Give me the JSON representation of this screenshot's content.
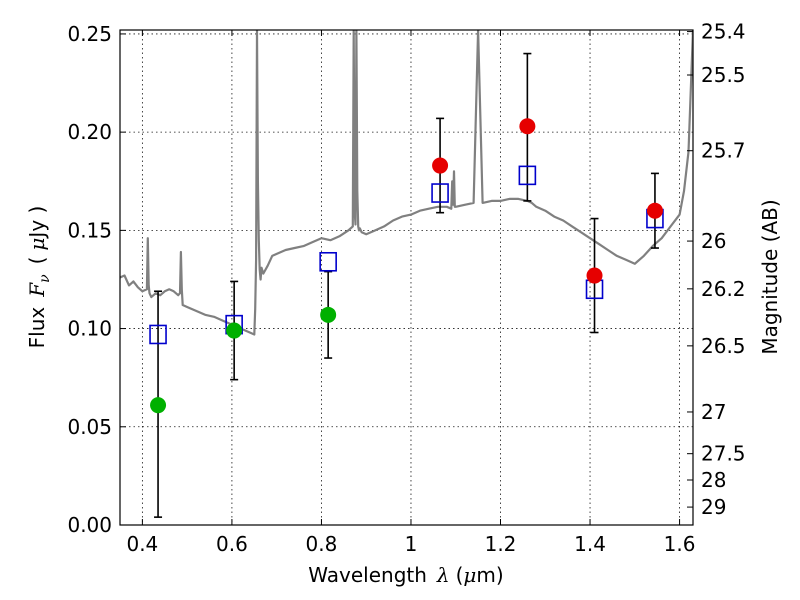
{
  "chart_data": {
    "type": "scatter",
    "title": "",
    "xlabel": {
      "text": "Wavelength",
      "symbol": "λ",
      "unit_open": "(",
      "unit_mu": "μ",
      "unit_rest": "m)"
    },
    "ylabel": {
      "text": "Flux",
      "symbol": "F",
      "subscript": "ν",
      "unit_open": "(",
      "unit_mu": "μ",
      "unit_rest": "Jy )"
    },
    "y2label": "Magnitude (AB)",
    "xlim": [
      0.35,
      1.63
    ],
    "ylim": [
      0.0,
      0.252
    ],
    "grid": true,
    "xticks": [
      {
        "value": 0.4,
        "label": "0.4"
      },
      {
        "value": 0.6,
        "label": "0.6"
      },
      {
        "value": 0.8,
        "label": "0.8"
      },
      {
        "value": 1.0,
        "label": "1"
      },
      {
        "value": 1.2,
        "label": "1.2"
      },
      {
        "value": 1.4,
        "label": "1.4"
      },
      {
        "value": 1.6,
        "label": "1.6"
      }
    ],
    "yticks": [
      {
        "value": 0.0,
        "label": "0.00"
      },
      {
        "value": 0.05,
        "label": "0.05"
      },
      {
        "value": 0.1,
        "label": "0.10"
      },
      {
        "value": 0.15,
        "label": "0.15"
      },
      {
        "value": 0.2,
        "label": "0.20"
      },
      {
        "value": 0.25,
        "label": "0.25"
      }
    ],
    "magnitude_ticks": [
      {
        "mag": 25.4,
        "label": "25.4"
      },
      {
        "mag": 25.5,
        "label": "25.5"
      },
      {
        "mag": 25.7,
        "label": "25.7"
      },
      {
        "mag": 26.0,
        "label": "26"
      },
      {
        "mag": 26.2,
        "label": "26.2"
      },
      {
        "mag": 26.5,
        "label": "26.5"
      },
      {
        "mag": 27.0,
        "label": "27"
      },
      {
        "mag": 27.5,
        "label": "27.5"
      },
      {
        "mag": 28.0,
        "label": "28"
      },
      {
        "mag": 29.0,
        "label": "29"
      }
    ],
    "colors": {
      "model_line": "#808080",
      "model_squares": "#0000cc",
      "observed_red": "#e60000",
      "observed_green": "#00b000",
      "error_bars": "#000000"
    },
    "model_spectrum": {
      "x": [
        0.35,
        0.36,
        0.37,
        0.38,
        0.39,
        0.4,
        0.41,
        0.412,
        0.414,
        0.416,
        0.42,
        0.43,
        0.44,
        0.45,
        0.46,
        0.47,
        0.48,
        0.484,
        0.486,
        0.488,
        0.49,
        0.5,
        0.52,
        0.54,
        0.56,
        0.58,
        0.6,
        0.62,
        0.64,
        0.65,
        0.652,
        0.654,
        0.656,
        0.658,
        0.66,
        0.662,
        0.664,
        0.666,
        0.67,
        0.68,
        0.69,
        0.7,
        0.72,
        0.74,
        0.76,
        0.78,
        0.8,
        0.82,
        0.84,
        0.86,
        0.87,
        0.872,
        0.874,
        0.876,
        0.878,
        0.88,
        0.882,
        0.884,
        0.886,
        0.888,
        0.89,
        0.9,
        0.92,
        0.94,
        0.96,
        0.98,
        1.0,
        1.02,
        1.04,
        1.06,
        1.08,
        1.09,
        1.092,
        1.094,
        1.096,
        1.098,
        1.1,
        1.12,
        1.14,
        1.15,
        1.16,
        1.18,
        1.2,
        1.22,
        1.24,
        1.26,
        1.27,
        1.28,
        1.3,
        1.32,
        1.34,
        1.36,
        1.38,
        1.4,
        1.42,
        1.44,
        1.46,
        1.48,
        1.5,
        1.52,
        1.54,
        1.56,
        1.58,
        1.6,
        1.61,
        1.62,
        1.63
      ],
      "y": [
        0.126,
        0.127,
        0.122,
        0.124,
        0.121,
        0.119,
        0.12,
        0.146,
        0.122,
        0.118,
        0.116,
        0.118,
        0.117,
        0.119,
        0.12,
        0.119,
        0.117,
        0.118,
        0.139,
        0.12,
        0.112,
        0.111,
        0.109,
        0.107,
        0.106,
        0.104,
        0.102,
        0.1,
        0.098,
        0.097,
        0.11,
        0.135,
        0.252,
        0.175,
        0.145,
        0.13,
        0.125,
        0.131,
        0.128,
        0.132,
        0.137,
        0.138,
        0.14,
        0.141,
        0.142,
        0.144,
        0.146,
        0.145,
        0.147,
        0.15,
        0.152,
        0.252,
        0.16,
        0.153,
        0.252,
        0.17,
        0.152,
        0.15,
        0.151,
        0.15,
        0.149,
        0.148,
        0.15,
        0.152,
        0.155,
        0.157,
        0.158,
        0.16,
        0.161,
        0.162,
        0.162,
        0.161,
        0.175,
        0.163,
        0.18,
        0.162,
        0.162,
        0.163,
        0.164,
        0.252,
        0.164,
        0.165,
        0.165,
        0.166,
        0.166,
        0.165,
        0.164,
        0.162,
        0.16,
        0.157,
        0.155,
        0.152,
        0.149,
        0.146,
        0.143,
        0.14,
        0.137,
        0.135,
        0.133,
        0.137,
        0.142,
        0.146,
        0.152,
        0.158,
        0.17,
        0.19,
        0.252
      ]
    },
    "series": [
      {
        "marker": "square",
        "x": [
          0.435,
          0.605,
          0.815,
          1.065,
          1.26,
          1.41,
          1.545
        ],
        "y": [
          0.097,
          0.102,
          0.134,
          0.169,
          0.178,
          0.12,
          0.156
        ]
      },
      {
        "marker": "circle",
        "x": [
          1.065,
          1.26,
          1.41,
          1.545
        ],
        "y": [
          0.183,
          0.203,
          0.127,
          0.16
        ],
        "yerr_low": [
          0.159,
          0.165,
          0.098,
          0.141
        ],
        "yerr_high": [
          0.207,
          0.24,
          0.156,
          0.179
        ]
      },
      {
        "marker": "circle",
        "x": [
          0.435,
          0.605,
          0.815
        ],
        "y": [
          0.061,
          0.099,
          0.107
        ],
        "yerr_low": [
          0.004,
          0.074,
          0.085
        ],
        "yerr_high": [
          0.119,
          0.124,
          0.129
        ]
      }
    ]
  }
}
